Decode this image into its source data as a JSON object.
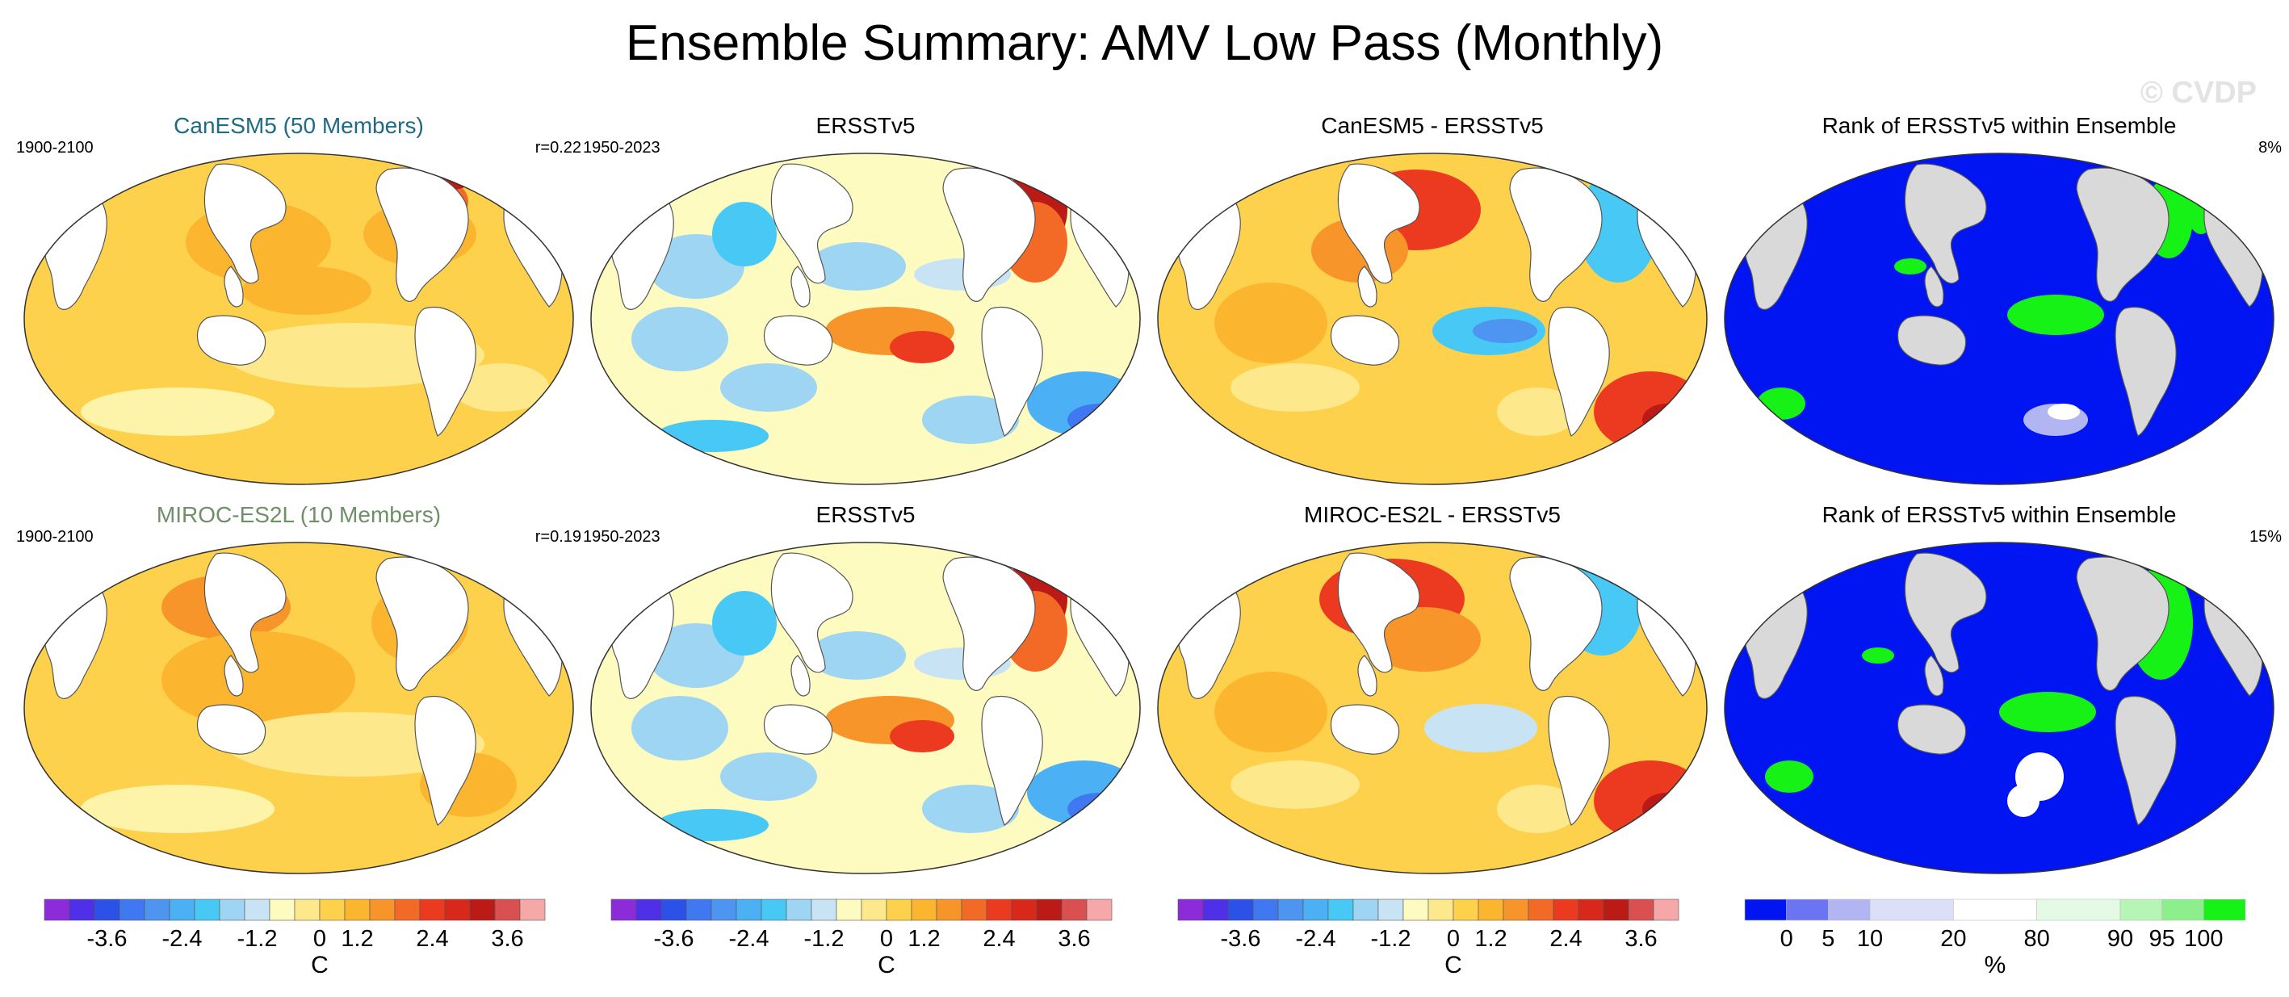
{
  "title": "Ensemble Summary: AMV Low Pass (Monthly)",
  "watermark": "© CVDP",
  "colors": {
    "model_title_1": "#1f6a85",
    "model_title_2": "#6f8f68",
    "diverging": [
      "#8c2bd9",
      "#4f2fe8",
      "#2c51e8",
      "#3f78f0",
      "#4d95f0",
      "#4cb0f4",
      "#48c8f5",
      "#9ed5f2",
      "#c8e4f4",
      "#fdfbc0",
      "#fde98c",
      "#fdd14c",
      "#fbb52e",
      "#f7952b",
      "#f26a26",
      "#ec3a20",
      "#d8281b",
      "#bb1a16",
      "#da4f50",
      "#f6a7a7"
    ],
    "rank": [
      "#0015f2",
      "#6b74f2",
      "#b1b6f2",
      "#dcdff8",
      "#ffffff",
      "#e4fae4",
      "#b6f5b6",
      "#8cef8c",
      "#16f116"
    ],
    "land": "#d9d9d9"
  },
  "rows": [
    {
      "model_title": "CanESM5 (50 Members)",
      "model_years": "1900-2100",
      "model_r": "r=0.22",
      "obs_title": "ERSSTv5",
      "obs_years": "1950-2023",
      "diff_title": "CanESM5 - ERSSTv5",
      "rank_title": "Rank of ERSSTv5 within Ensemble",
      "rank_pct": "8%"
    },
    {
      "model_title": "MIROC-ES2L (10 Members)",
      "model_years": "1900-2100",
      "model_r": "r=0.19",
      "obs_title": "ERSSTv5",
      "obs_years": "1950-2023",
      "diff_title": "MIROC-ES2L - ERSSTv5",
      "rank_title": "Rank of ERSSTv5 within Ensemble",
      "rank_pct": "15%"
    }
  ],
  "colorbars": {
    "temp_ticks": [
      "-3.6",
      "-2.4",
      "-1.2",
      "0",
      "1.2",
      "2.4",
      "3.6"
    ],
    "temp_unit": "C",
    "rank_ticks": [
      "0",
      "5",
      "10",
      "20",
      "80",
      "90",
      "95",
      "100"
    ],
    "rank_unit": "%"
  }
}
